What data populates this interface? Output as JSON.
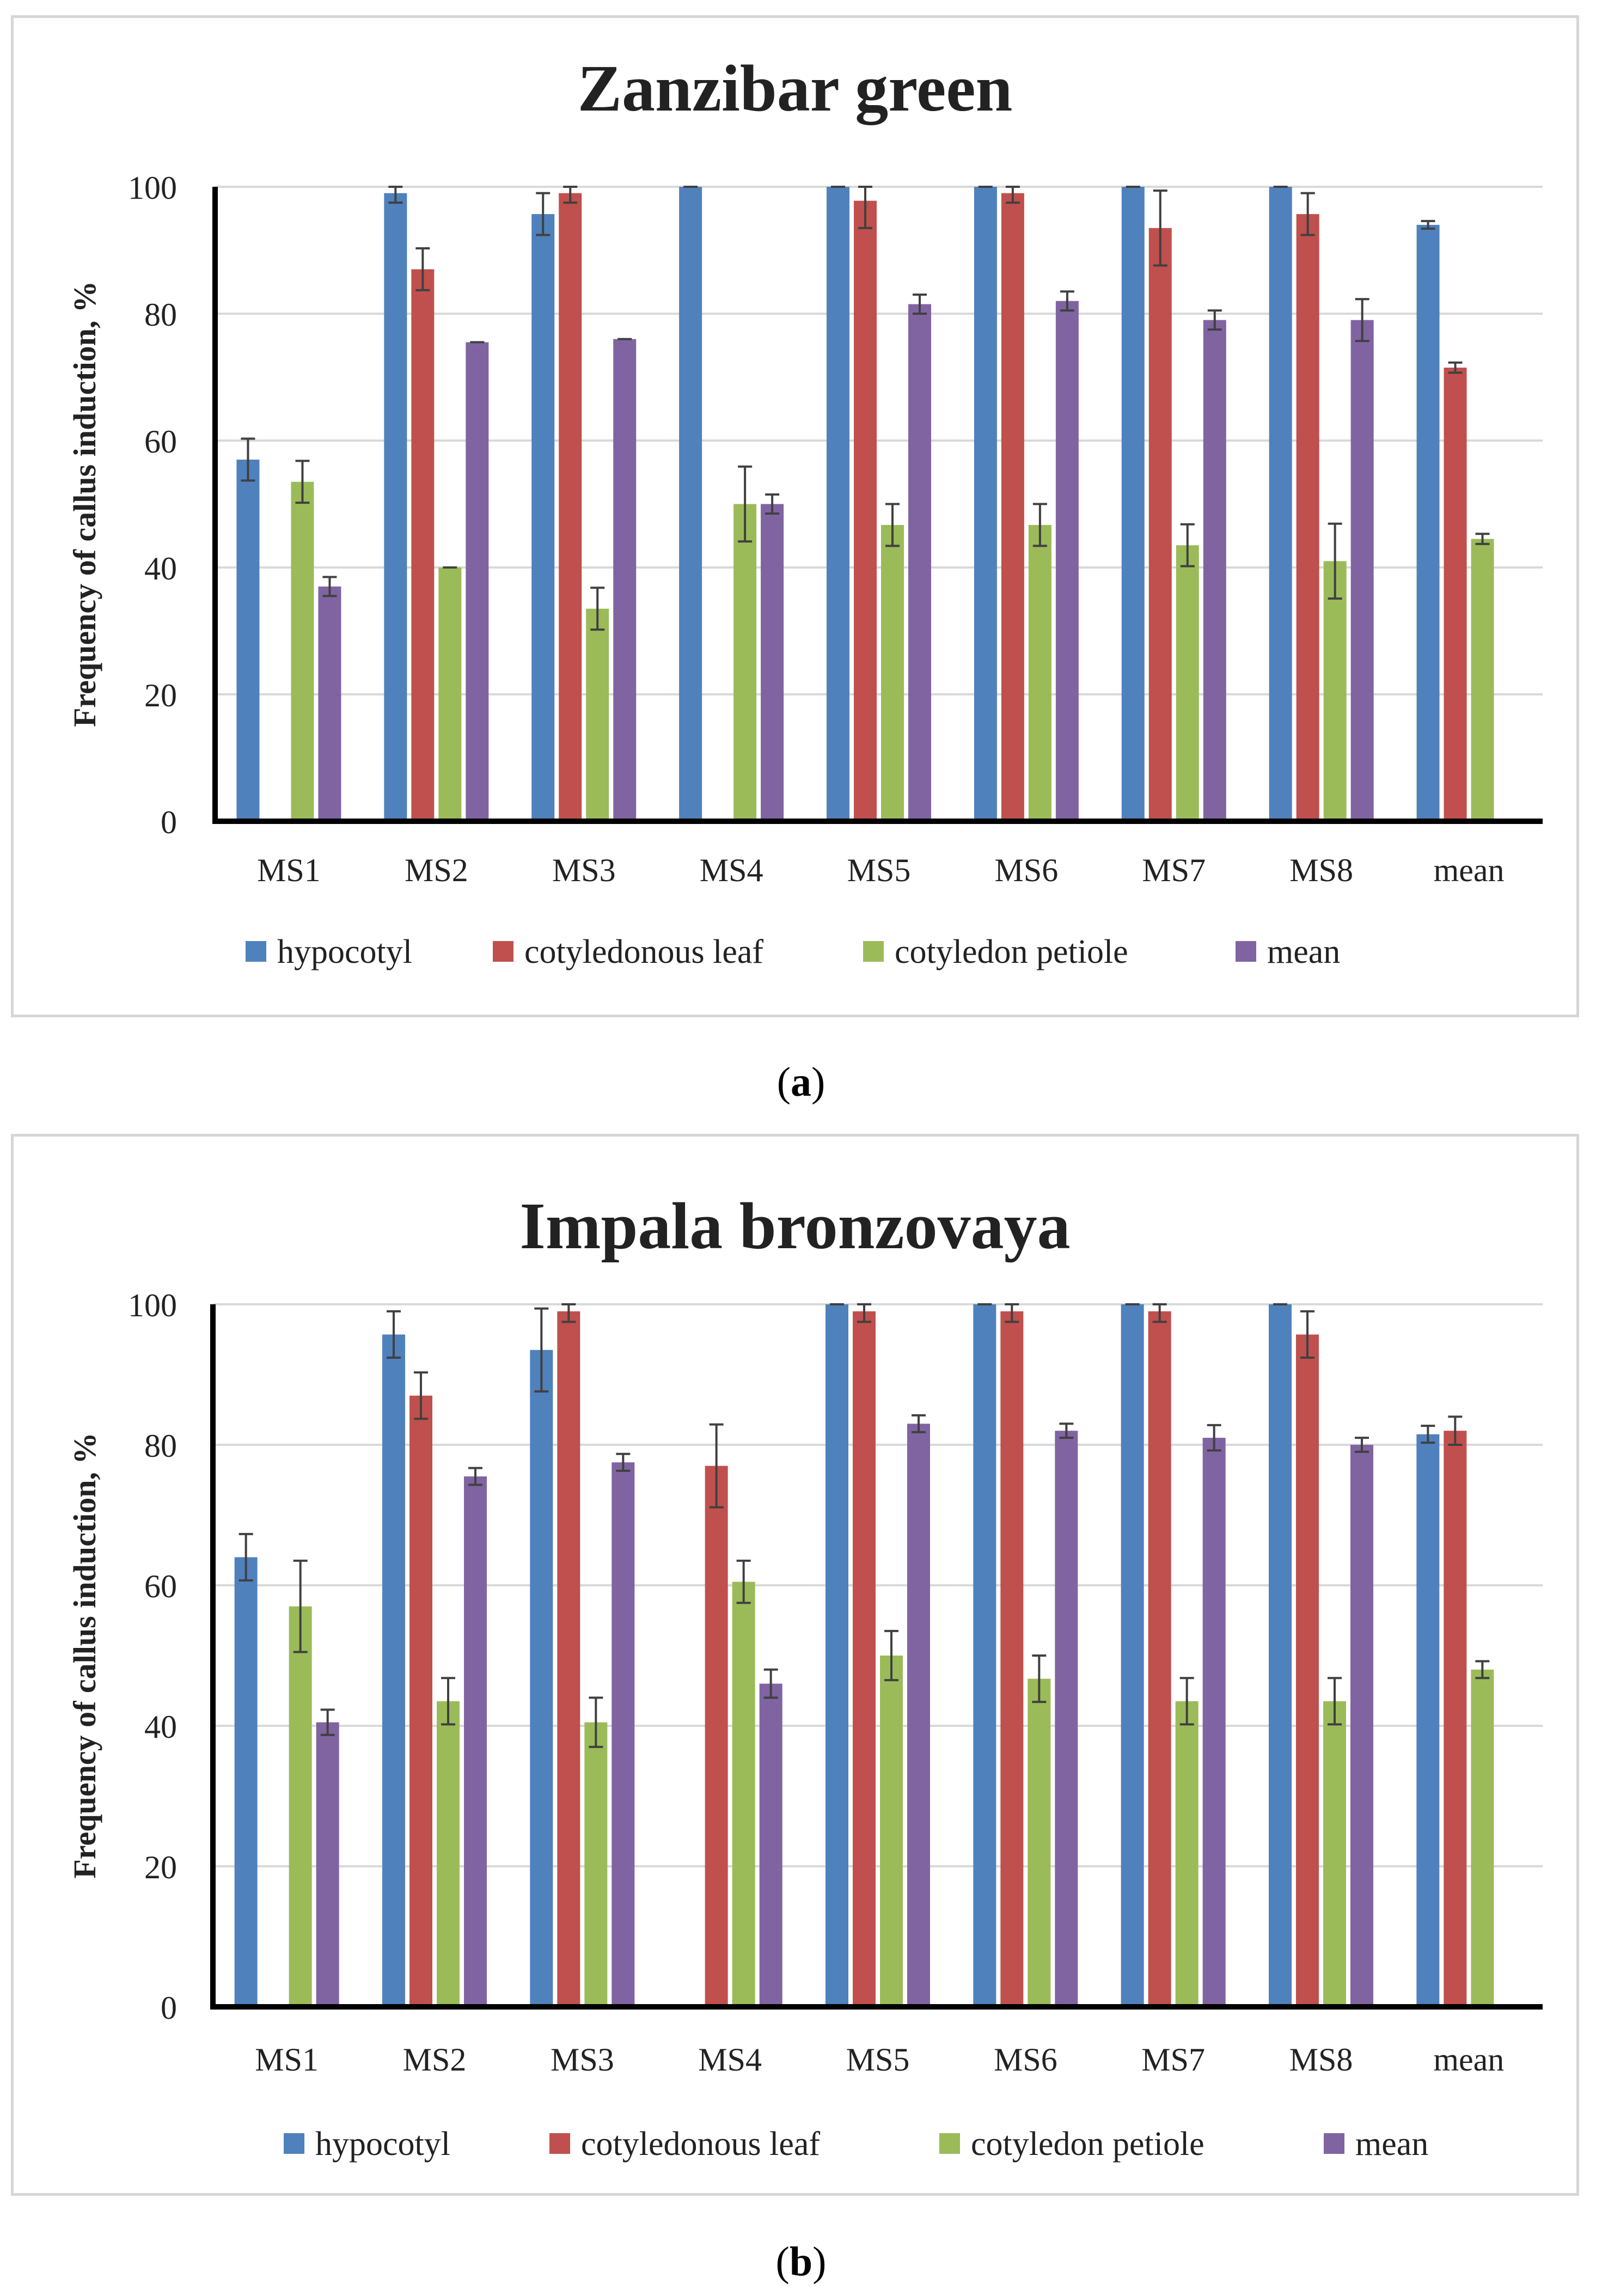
{
  "colors": {
    "hypocotyl": "#4f81bd",
    "cotyledonous_leaf": "#c0504d",
    "cotyledon_petiole": "#9bbb59",
    "mean": "#8064a2",
    "grid": "#d9d9d9",
    "axis": "#000000",
    "errorbar": "#404040"
  },
  "chart_data": [
    {
      "type": "bar",
      "title": "Zanzibar green",
      "ylabel": "Frequency of callus induction, %",
      "xlabel": "",
      "ylim": [
        0,
        100
      ],
      "yticks": [
        0,
        20,
        40,
        60,
        80,
        100
      ],
      "grid": true,
      "legend_position": "bottom",
      "caption_open": "(",
      "caption_letter": "a",
      "caption_close": ")",
      "categories": [
        "MS1",
        "MS2",
        "MS3",
        "MS4",
        "MS5",
        "MS6",
        "MS7",
        "MS8",
        "mean"
      ],
      "series": [
        {
          "name": "hypocotyl",
          "key": "hypocotyl",
          "values": [
            57,
            99,
            95.7,
            100,
            100,
            100,
            100,
            100,
            94
          ],
          "errors": [
            3.3,
            1.5,
            3.3,
            0,
            0,
            0,
            0,
            0,
            0.6
          ]
        },
        {
          "name": "cotyledonous leaf",
          "key": "cotyledonous_leaf",
          "values": [
            0,
            87,
            99,
            0,
            97.8,
            99,
            93.5,
            95.7,
            71.5
          ],
          "errors": [
            0,
            3.3,
            1.5,
            0,
            4.3,
            1.5,
            5.9,
            3.3,
            0.8
          ]
        },
        {
          "name": "cotyledon petiole",
          "key": "cotyledon_petiole",
          "values": [
            53.5,
            40,
            33.5,
            50,
            46.7,
            46.7,
            43.5,
            41,
            44.5
          ],
          "errors": [
            3.3,
            0,
            3.3,
            5.9,
            3.3,
            3.3,
            3.3,
            5.9,
            0.8
          ]
        },
        {
          "name": "mean",
          "key": "mean",
          "values": [
            37,
            75.5,
            76,
            50,
            81.5,
            82,
            79,
            79,
            0
          ],
          "errors": [
            1.5,
            0,
            0,
            1.5,
            1.5,
            1.5,
            1.5,
            3.3,
            0
          ]
        }
      ]
    },
    {
      "type": "bar",
      "title": "Impala bronzovaya",
      "ylabel": "Frequency of callus induction, %",
      "xlabel": "",
      "ylim": [
        0,
        100
      ],
      "yticks": [
        0,
        20,
        40,
        60,
        80,
        100
      ],
      "grid": true,
      "legend_position": "bottom",
      "caption_open": "(",
      "caption_letter": "b",
      "caption_close": ")",
      "categories": [
        "MS1",
        "MS2",
        "MS3",
        "MS4",
        "MS5",
        "MS6",
        "MS7",
        "MS8",
        "mean"
      ],
      "series": [
        {
          "name": "hypocotyl",
          "key": "hypocotyl",
          "values": [
            64,
            95.7,
            93.5,
            0,
            100,
            100,
            100,
            100,
            81.5
          ],
          "errors": [
            3.3,
            3.3,
            5.9,
            0,
            0,
            0,
            0,
            0,
            1.2
          ]
        },
        {
          "name": "cotyledonous leaf",
          "key": "cotyledonous_leaf",
          "values": [
            0,
            87,
            99,
            77,
            99,
            99,
            99,
            95.7,
            82
          ],
          "errors": [
            0,
            3.3,
            1.5,
            5.9,
            1.5,
            1.5,
            1.5,
            3.3,
            2
          ]
        },
        {
          "name": "cotyledon petiole",
          "key": "cotyledon_petiole",
          "values": [
            57,
            43.5,
            40.5,
            60.5,
            50,
            46.7,
            43.5,
            43.5,
            48
          ],
          "errors": [
            6.5,
            3.3,
            3.5,
            3,
            3.5,
            3.3,
            3.3,
            3.3,
            1.2
          ]
        },
        {
          "name": "mean",
          "key": "mean",
          "values": [
            40.5,
            75.5,
            77.5,
            46,
            83,
            82,
            81,
            80,
            0
          ],
          "errors": [
            1.8,
            1.2,
            1.2,
            2,
            1.2,
            1,
            1.8,
            1,
            0
          ]
        }
      ]
    }
  ]
}
